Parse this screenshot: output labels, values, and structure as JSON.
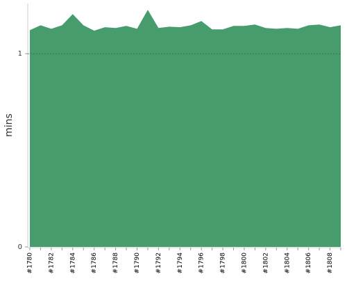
{
  "chart_data": {
    "type": "area",
    "ylabel": "mins",
    "categories": [
      "#1780",
      null,
      "#1782",
      null,
      "#1784",
      null,
      "#1786",
      null,
      "#1788",
      null,
      "#1790",
      null,
      "#1792",
      null,
      "#1794",
      null,
      "#1796",
      null,
      "#1798",
      null,
      "#1800",
      null,
      "#1802",
      null,
      "#1804",
      null,
      "#1806",
      null,
      "#1808",
      null
    ],
    "values": [
      1.122,
      1.147,
      1.129,
      1.147,
      1.205,
      1.147,
      1.119,
      1.137,
      1.133,
      1.144,
      1.129,
      1.227,
      1.133,
      1.14,
      1.137,
      1.147,
      1.169,
      1.126,
      1.126,
      1.144,
      1.144,
      1.151,
      1.133,
      1.129,
      1.133,
      1.129,
      1.147,
      1.151,
      1.137,
      1.147
    ],
    "color": "#469c6c",
    "ylim": [
      0,
      1.26
    ],
    "yticks": [
      0,
      1
    ],
    "grid": true
  }
}
